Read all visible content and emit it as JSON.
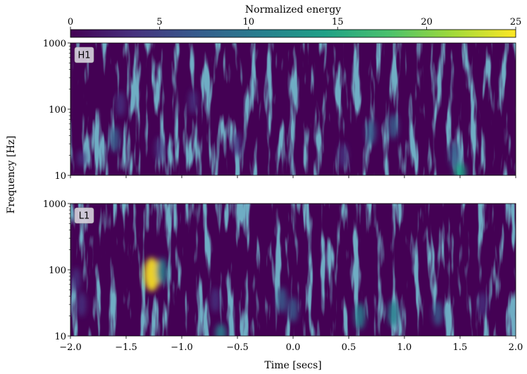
{
  "chart_data": {
    "type": "heatmap",
    "colorbar": {
      "label": "Normalized energy",
      "ticks": [
        "0",
        "5",
        "10",
        "15",
        "20",
        "25"
      ],
      "range": [
        0,
        25
      ],
      "colormap": [
        "#440154",
        "#46327e",
        "#365c8d",
        "#277f8e",
        "#1fa187",
        "#4ac16d",
        "#a0da39",
        "#fde725"
      ]
    },
    "xlabel": "Time [secs]",
    "ylabel": "Frequency [Hz]",
    "xlim": [
      -2.0,
      2.0
    ],
    "ylim": [
      10,
      1000
    ],
    "yscale": "log",
    "x_ticks": [
      "−2.0",
      "−1.5",
      "−1.0",
      "−0.5",
      "0.0",
      "0.5",
      "1.0",
      "1.5",
      "2.0"
    ],
    "y_ticks": [
      "10",
      "100",
      "1000"
    ],
    "panels": [
      {
        "label": "H1",
        "hotspots": [
          {
            "t": 1.5,
            "f": 11,
            "energy": 14
          },
          {
            "t": 1.45,
            "f": 20,
            "energy": 8
          },
          {
            "t": -1.6,
            "f": 35,
            "energy": 7
          },
          {
            "t": 0.7,
            "f": 45,
            "energy": 7
          },
          {
            "t": 0.9,
            "f": 55,
            "energy": 6
          },
          {
            "t": -0.5,
            "f": 30,
            "energy": 5
          },
          {
            "t": -1.9,
            "f": 18,
            "energy": 5
          },
          {
            "t": -1.2,
            "f": 25,
            "energy": 5
          },
          {
            "t": 0.45,
            "f": 20,
            "energy": 5
          },
          {
            "t": -1.55,
            "f": 120,
            "energy": 5
          },
          {
            "t": -0.9,
            "f": 130,
            "energy": 4
          }
        ]
      },
      {
        "label": "L1",
        "hotspots": [
          {
            "t": -1.27,
            "f": 85,
            "energy": 25
          },
          {
            "t": -1.18,
            "f": 95,
            "energy": 10
          },
          {
            "t": -0.65,
            "f": 11,
            "energy": 11
          },
          {
            "t": 0.6,
            "f": 20,
            "energy": 9
          },
          {
            "t": 0.9,
            "f": 22,
            "energy": 9
          },
          {
            "t": -0.1,
            "f": 35,
            "energy": 7
          },
          {
            "t": 1.3,
            "f": 22,
            "energy": 6
          },
          {
            "t": 0.0,
            "f": 25,
            "energy": 6
          },
          {
            "t": -1.9,
            "f": 30,
            "energy": 5
          },
          {
            "t": -1.95,
            "f": 70,
            "energy": 5
          },
          {
            "t": -0.7,
            "f": 35,
            "energy": 5
          },
          {
            "t": 1.7,
            "f": 30,
            "energy": 4
          }
        ]
      }
    ]
  }
}
